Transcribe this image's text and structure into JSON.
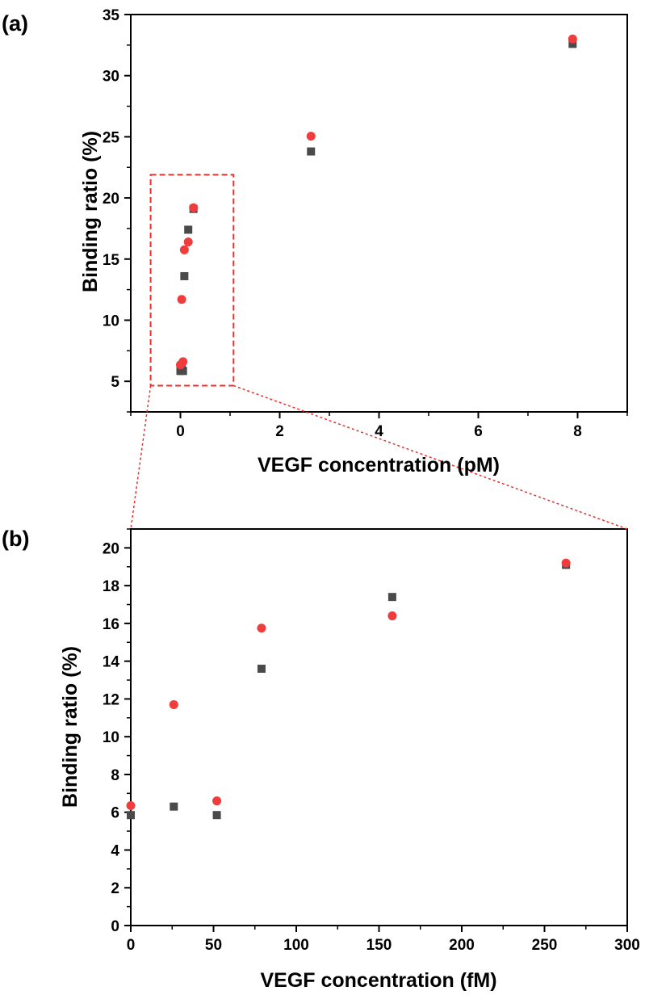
{
  "chart_data": [
    {
      "type": "scatter",
      "panel_label": "(a)",
      "xlabel": "VEGF concentration (pM)",
      "ylabel": "Binding ratio (%)",
      "xlim": [
        -1,
        9
      ],
      "ylim": [
        2.5,
        35
      ],
      "x_ticks": [
        0,
        2,
        4,
        6,
        8
      ],
      "y_ticks": [
        5,
        10,
        15,
        20,
        25,
        30,
        35
      ],
      "grid": false,
      "legend": "none",
      "series": [
        {
          "marker": "square",
          "color": "#4a4a4a",
          "points": [
            {
              "x": 0.0,
              "y": 5.85
            },
            {
              "x": 0.026,
              "y": 6.3
            },
            {
              "x": 0.052,
              "y": 5.85
            },
            {
              "x": 0.079,
              "y": 13.6
            },
            {
              "x": 0.158,
              "y": 17.4
            },
            {
              "x": 0.263,
              "y": 19.1
            },
            {
              "x": 2.63,
              "y": 23.8
            },
            {
              "x": 7.9,
              "y": 32.6
            }
          ]
        },
        {
          "marker": "circle",
          "color": "#f03c3c",
          "points": [
            {
              "x": 0.0,
              "y": 6.35
            },
            {
              "x": 0.026,
              "y": 11.7
            },
            {
              "x": 0.052,
              "y": 6.6
            },
            {
              "x": 0.079,
              "y": 15.75
            },
            {
              "x": 0.158,
              "y": 16.4
            },
            {
              "x": 0.263,
              "y": 19.2
            },
            {
              "x": 2.63,
              "y": 25.05
            },
            {
              "x": 7.9,
              "y": 33.0
            }
          ]
        }
      ],
      "annotations": [
        {
          "type": "dashed-box",
          "color": "#e8302e",
          "x_range": [
            -0.6,
            1.07
          ],
          "y_range": [
            4.65,
            21.9
          ]
        }
      ]
    },
    {
      "type": "scatter",
      "panel_label": "(b)",
      "xlabel": "VEGF concentration (fM)",
      "ylabel": "Binding ratio (%)",
      "xlim": [
        0,
        300
      ],
      "ylim": [
        0,
        21
      ],
      "x_ticks": [
        0,
        50,
        100,
        150,
        200,
        250,
        300
      ],
      "y_ticks": [
        0,
        2,
        4,
        6,
        8,
        10,
        12,
        14,
        16,
        18,
        20
      ],
      "grid": false,
      "legend": "none",
      "series": [
        {
          "marker": "square",
          "color": "#4a4a4a",
          "points": [
            {
              "x": 0,
              "y": 5.85
            },
            {
              "x": 26,
              "y": 6.3
            },
            {
              "x": 52,
              "y": 5.85
            },
            {
              "x": 79,
              "y": 13.6
            },
            {
              "x": 158,
              "y": 17.4
            },
            {
              "x": 263,
              "y": 19.1
            }
          ]
        },
        {
          "marker": "circle",
          "color": "#f03c3c",
          "points": [
            {
              "x": 0,
              "y": 6.35
            },
            {
              "x": 26,
              "y": 11.7
            },
            {
              "x": 52,
              "y": 6.6
            },
            {
              "x": 79,
              "y": 15.75
            },
            {
              "x": 158,
              "y": 16.4
            },
            {
              "x": 263,
              "y": 19.2
            }
          ]
        }
      ]
    }
  ],
  "zoom_connector_color": "#e8302e"
}
